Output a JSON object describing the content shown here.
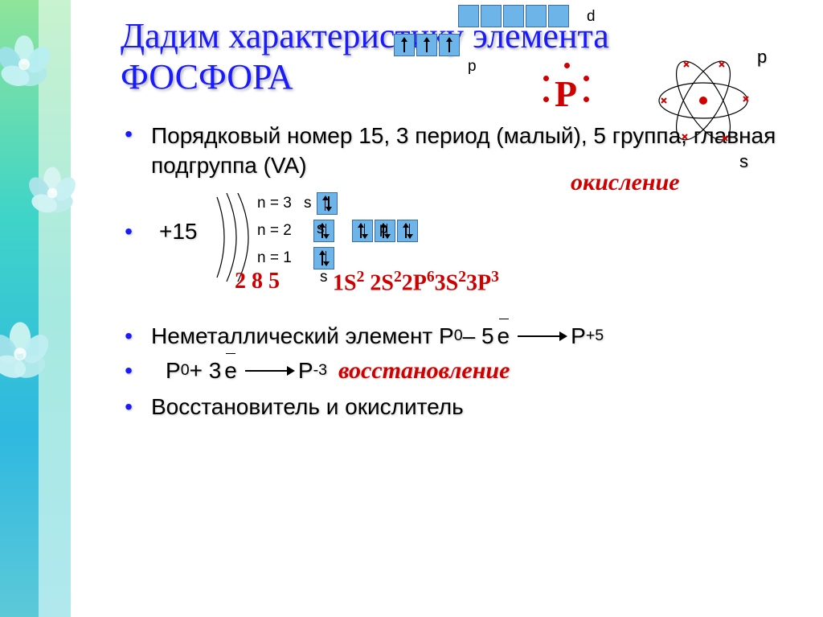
{
  "title_line1": "Дадим характеристику элемента",
  "title_line2": "ФОСФОРА",
  "bullet1": "Порядковый номер 15, 3 период (малый), 5 группа, главная подгруппа (VA)",
  "charge": "+15",
  "n_labels": {
    "n3": "n = 3",
    "n2": "n = 2",
    "n1": "n = 1"
  },
  "sub_letters": {
    "s": "s",
    "p": "p",
    "d": "d"
  },
  "shell_numbers": "2 8 5",
  "electron_config_html": "1S<sup>2</sup> 2S<sup>2</sup>2P<sup>6</sup>3S<sup>2</sup>3P<sup>3</sup>",
  "lewis_symbol": "P",
  "oxidation_word": "окисление",
  "reduction_word": "восстановление",
  "bullet_nonmetal_prefix": "Неметаллический элемент  P",
  "bullet_nonmetal_mid": " – 5 ",
  "bullet_nonmetal_end": "P",
  "sup_zero": "0",
  "sup_plus5": "+5",
  "sup_minus3": "-3",
  "e_letter": "e",
  "rx2_prefix": "P",
  "rx2_mid": " + 3 ",
  "bullet_last": "Восстановитель и окислитель",
  "side_p": "p",
  "side_s": "s",
  "colors": {
    "title": "#1a1aff",
    "bullet_dot": "#1a1aff",
    "red": "#d00000",
    "box_fill": "#6db5e8",
    "box_border": "#3a6ea5"
  },
  "orbital_diagram": {
    "rows": [
      {
        "n": 3,
        "s_pair": true,
        "p": [
          "up",
          "up",
          "up"
        ],
        "d_empty": 5
      },
      {
        "n": 2,
        "s_pair": true,
        "p": [
          "pair",
          "pair",
          "pair"
        ]
      },
      {
        "n": 1,
        "s_pair": true
      }
    ]
  }
}
